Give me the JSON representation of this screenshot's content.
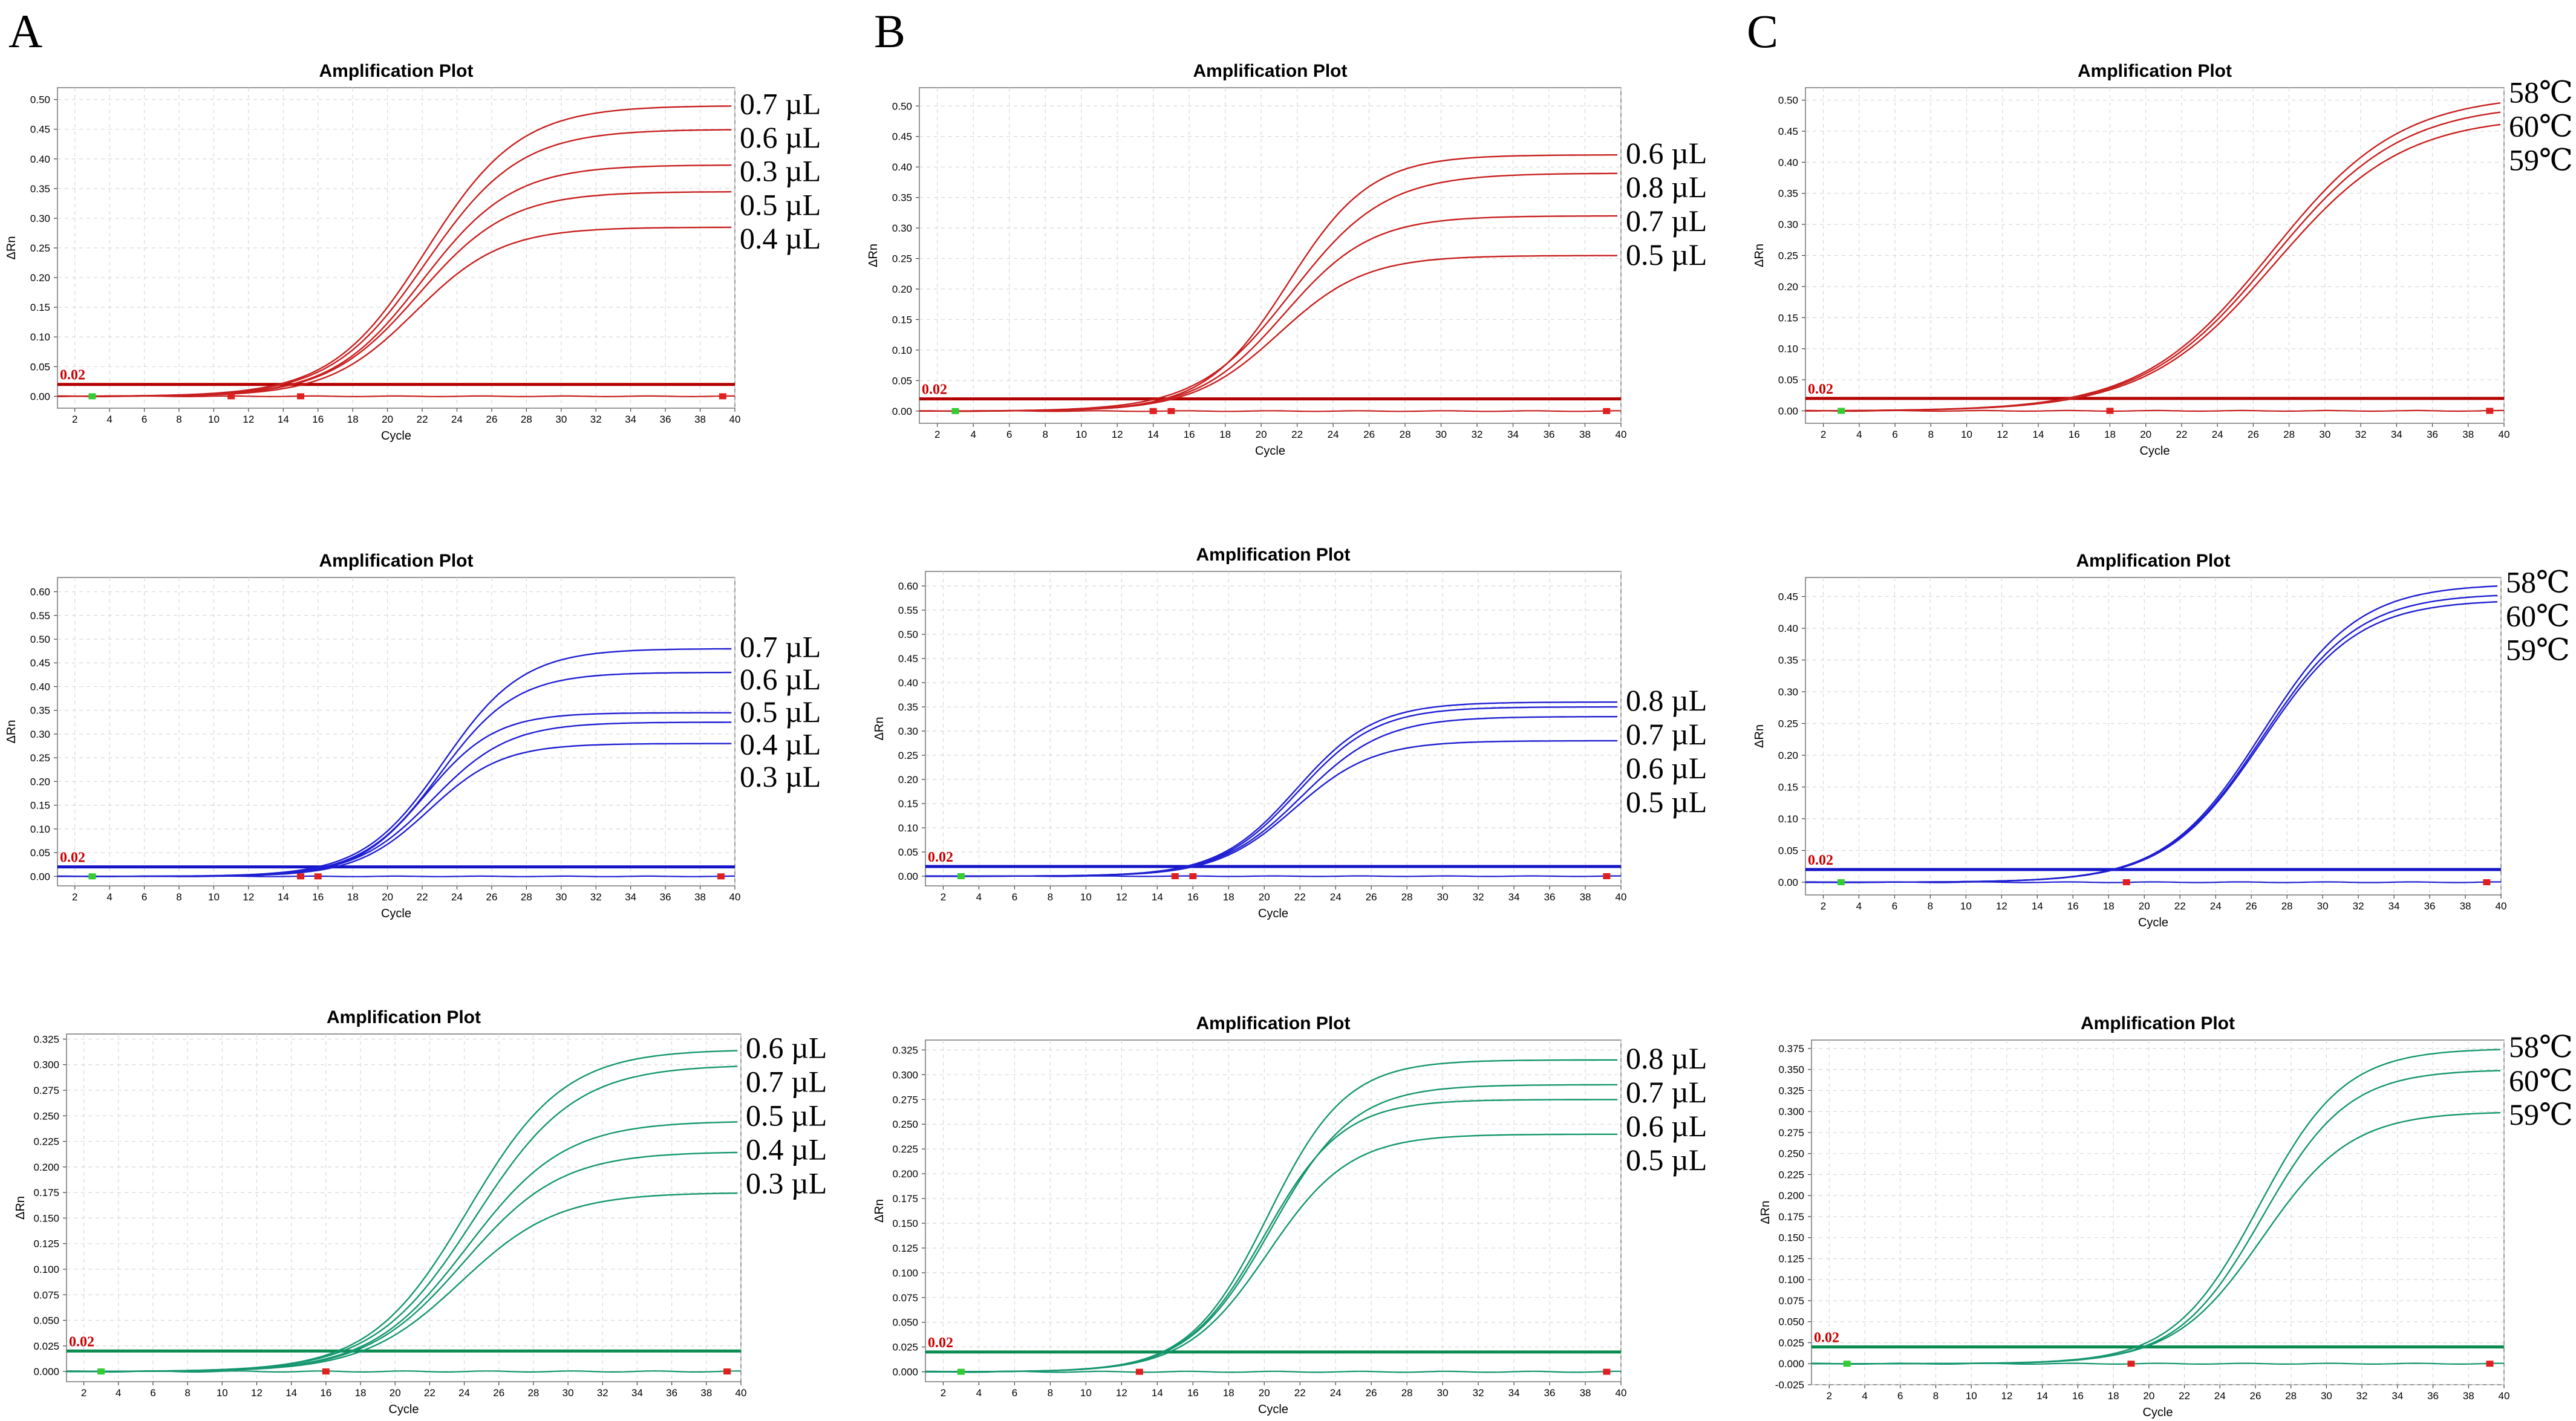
{
  "figure": {
    "panel_letters": [
      "A",
      "B",
      "C"
    ]
  },
  "colors": {
    "red": "#c81e1e",
    "blue": "#1e1ed2",
    "green": "#14966e",
    "threshold_red": "#b40000",
    "threshold_blue": "#1414c8",
    "threshold_green": "#0a8c50",
    "threshold_text": "#cc0000",
    "grid": "#d9d9d9",
    "marker_start": "#33cc33",
    "marker_end": "#e02020"
  },
  "chart_data": [
    {
      "panel": "A",
      "row": 1,
      "type": "line",
      "color": "red",
      "title": "Amplification Plot",
      "xlabel": "Cycle",
      "ylabel": "ΔRn",
      "xlim": [
        1,
        40
      ],
      "ylim": [
        -0.02,
        0.52
      ],
      "xticks": [
        2,
        4,
        6,
        8,
        10,
        12,
        14,
        16,
        18,
        20,
        22,
        24,
        26,
        28,
        30,
        32,
        34,
        36,
        38,
        40
      ],
      "yticks": [
        "0.00",
        "0.05",
        "0.10",
        "0.15",
        "0.20",
        "0.25",
        "0.30",
        "0.35",
        "0.40",
        "0.45",
        "0.50"
      ],
      "threshold": 0.02,
      "threshold_label": "0.02",
      "start_marker": 3,
      "end_markers": [
        11,
        15,
        39.3
      ],
      "series": [
        {
          "name": "0.7 µL",
          "plateau": 0.49,
          "midpoint": 22.2,
          "slope": 2.7
        },
        {
          "name": "0.6 µL",
          "plateau": 0.45,
          "midpoint": 22.2,
          "slope": 2.7
        },
        {
          "name": "0.3 µL",
          "plateau": 0.39,
          "midpoint": 22.0,
          "slope": 2.6
        },
        {
          "name": "0.5 µL",
          "plateau": 0.345,
          "midpoint": 21.8,
          "slope": 2.6
        },
        {
          "name": "0.4 µL",
          "plateau": 0.285,
          "midpoint": 21.6,
          "slope": 2.5
        }
      ]
    },
    {
      "panel": "B",
      "row": 1,
      "type": "line",
      "color": "red",
      "title": "Amplification Plot",
      "xlabel": "Cycle",
      "ylabel": "ΔRn",
      "xlim": [
        1,
        40
      ],
      "ylim": [
        -0.02,
        0.53
      ],
      "xticks": [
        2,
        4,
        6,
        8,
        10,
        12,
        14,
        16,
        18,
        20,
        22,
        24,
        26,
        28,
        30,
        32,
        34,
        36,
        38,
        40
      ],
      "yticks": [
        "0.00",
        "0.05",
        "0.10",
        "0.15",
        "0.20",
        "0.25",
        "0.30",
        "0.35",
        "0.40",
        "0.45",
        "0.50"
      ],
      "threshold": 0.02,
      "threshold_label": "0.02",
      "start_marker": 3,
      "end_markers": [
        14,
        15,
        39.2
      ],
      "series": [
        {
          "name": "0.6 µL",
          "plateau": 0.42,
          "midpoint": 21.5,
          "slope": 2.3
        },
        {
          "name": "0.8 µL",
          "plateau": 0.39,
          "midpoint": 21.7,
          "slope": 2.6
        },
        {
          "name": "0.7 µL",
          "plateau": 0.32,
          "midpoint": 21.3,
          "slope": 2.4
        },
        {
          "name": "0.5 µL",
          "plateau": 0.255,
          "midpoint": 21.0,
          "slope": 2.4
        }
      ]
    },
    {
      "panel": "C",
      "row": 1,
      "type": "line",
      "color": "red",
      "title": "Amplification Plot",
      "xlabel": "Cycle",
      "ylabel": "ΔRn",
      "xlim": [
        1,
        40
      ],
      "ylim": [
        -0.02,
        0.52
      ],
      "xticks": [
        2,
        4,
        6,
        8,
        10,
        12,
        14,
        16,
        18,
        20,
        22,
        24,
        26,
        28,
        30,
        32,
        34,
        36,
        38,
        40
      ],
      "yticks": [
        "0.00",
        "0.05",
        "0.10",
        "0.15",
        "0.20",
        "0.25",
        "0.30",
        "0.35",
        "0.40",
        "0.45",
        "0.50"
      ],
      "threshold": 0.02,
      "threshold_label": "0.02",
      "start_marker": 3,
      "end_markers": [
        18,
        39.2
      ],
      "series": [
        {
          "name": "58℃",
          "plateau": 0.51,
          "midpoint": 27.0,
          "slope": 3.6
        },
        {
          "name": "60℃",
          "plateau": 0.495,
          "midpoint": 27.1,
          "slope": 3.6
        },
        {
          "name": "59℃",
          "plateau": 0.475,
          "midpoint": 27.2,
          "slope": 3.6
        }
      ]
    },
    {
      "panel": "A",
      "row": 2,
      "type": "line",
      "color": "blue",
      "title": "Amplification Plot",
      "xlabel": "Cycle",
      "ylabel": "ΔRn",
      "xlim": [
        1,
        40
      ],
      "ylim": [
        -0.02,
        0.63
      ],
      "xticks": [
        2,
        4,
        6,
        8,
        10,
        12,
        14,
        16,
        18,
        20,
        22,
        24,
        26,
        28,
        30,
        32,
        34,
        36,
        38,
        40
      ],
      "yticks": [
        "0.00",
        "0.05",
        "0.10",
        "0.15",
        "0.20",
        "0.25",
        "0.30",
        "0.35",
        "0.40",
        "0.45",
        "0.50",
        "0.55",
        "0.60"
      ],
      "threshold": 0.02,
      "threshold_label": "0.02",
      "start_marker": 3,
      "end_markers": [
        15,
        16,
        39.2
      ],
      "series": [
        {
          "name": "0.7 µL",
          "plateau": 0.48,
          "midpoint": 23.2,
          "slope": 2.3
        },
        {
          "name": "0.6 µL",
          "plateau": 0.43,
          "midpoint": 23.0,
          "slope": 2.2
        },
        {
          "name": "0.5 µL",
          "plateau": 0.345,
          "midpoint": 22.2,
          "slope": 2.0
        },
        {
          "name": "0.4 µL",
          "plateau": 0.325,
          "midpoint": 22.6,
          "slope": 2.2
        },
        {
          "name": "0.3 µL",
          "plateau": 0.28,
          "midpoint": 22.4,
          "slope": 2.1
        }
      ]
    },
    {
      "panel": "B",
      "row": 2,
      "type": "line",
      "color": "blue",
      "title": "Amplification Plot",
      "xlabel": "Cycle",
      "ylabel": "ΔRn",
      "xlim": [
        1,
        40
      ],
      "ylim": [
        -0.02,
        0.63
      ],
      "xticks": [
        2,
        4,
        6,
        8,
        10,
        12,
        14,
        16,
        18,
        20,
        22,
        24,
        26,
        28,
        30,
        32,
        34,
        36,
        38,
        40
      ],
      "yticks": [
        "0.00",
        "0.05",
        "0.10",
        "0.15",
        "0.20",
        "0.25",
        "0.30",
        "0.35",
        "0.40",
        "0.45",
        "0.50",
        "0.55",
        "0.60"
      ],
      "threshold": 0.02,
      "threshold_label": "0.02",
      "start_marker": 3,
      "end_markers": [
        15,
        16,
        39.2
      ],
      "series": [
        {
          "name": "0.8 µL",
          "plateau": 0.36,
          "midpoint": 21.8,
          "slope": 2.2
        },
        {
          "name": "0.7 µL",
          "plateau": 0.35,
          "midpoint": 21.9,
          "slope": 2.2
        },
        {
          "name": "0.6 µL",
          "plateau": 0.33,
          "midpoint": 22.1,
          "slope": 2.3
        },
        {
          "name": "0.5 µL",
          "plateau": 0.28,
          "midpoint": 21.7,
          "slope": 2.2
        }
      ]
    },
    {
      "panel": "C",
      "row": 2,
      "type": "line",
      "color": "blue",
      "title": "Amplification Plot",
      "xlabel": "Cycle",
      "ylabel": "ΔRn",
      "xlim": [
        1,
        40
      ],
      "ylim": [
        -0.02,
        0.48
      ],
      "xticks": [
        2,
        4,
        6,
        8,
        10,
        12,
        14,
        16,
        18,
        20,
        22,
        24,
        26,
        28,
        30,
        32,
        34,
        36,
        38,
        40
      ],
      "yticks": [
        "0.00",
        "0.05",
        "0.10",
        "0.15",
        "0.20",
        "0.25",
        "0.30",
        "0.35",
        "0.40",
        "0.45"
      ],
      "threshold": 0.02,
      "threshold_label": "0.02",
      "start_marker": 3,
      "end_markers": [
        19,
        39.2
      ],
      "series": [
        {
          "name": "58℃",
          "plateau": 0.47,
          "midpoint": 26.6,
          "slope": 2.7
        },
        {
          "name": "60℃",
          "plateau": 0.455,
          "midpoint": 26.6,
          "slope": 2.7
        },
        {
          "name": "59℃",
          "plateau": 0.445,
          "midpoint": 26.6,
          "slope": 2.7
        }
      ]
    },
    {
      "panel": "A",
      "row": 3,
      "type": "line",
      "color": "green",
      "title": "Amplification Plot",
      "xlabel": "Cycle",
      "ylabel": "ΔRn",
      "xlim": [
        1,
        40
      ],
      "ylim": [
        -0.01,
        0.33
      ],
      "xticks": [
        2,
        4,
        6,
        8,
        10,
        12,
        14,
        16,
        18,
        20,
        22,
        24,
        26,
        28,
        30,
        32,
        34,
        36,
        38,
        40
      ],
      "yticks": [
        "0.000",
        "0.025",
        "0.050",
        "0.075",
        "0.100",
        "0.125",
        "0.150",
        "0.175",
        "0.200",
        "0.225",
        "0.250",
        "0.275",
        "0.300",
        "0.325"
      ],
      "threshold": 0.02,
      "threshold_label": "0.02",
      "start_marker": 3,
      "end_markers": [
        16,
        39.2
      ],
      "series": [
        {
          "name": "0.6 µL",
          "plateau": 0.315,
          "midpoint": 24.2,
          "slope": 2.8
        },
        {
          "name": "0.7 µL",
          "plateau": 0.3,
          "midpoint": 24.6,
          "slope": 2.9
        },
        {
          "name": "0.5 µL",
          "plateau": 0.245,
          "midpoint": 24.2,
          "slope": 2.8
        },
        {
          "name": "0.4 µL",
          "plateau": 0.215,
          "midpoint": 24.0,
          "slope": 2.8
        },
        {
          "name": "0.3 µL",
          "plateau": 0.175,
          "midpoint": 23.8,
          "slope": 2.8
        }
      ]
    },
    {
      "panel": "B",
      "row": 3,
      "type": "line",
      "color": "green",
      "title": "Amplification Plot",
      "xlabel": "Cycle",
      "ylabel": "ΔRn",
      "xlim": [
        1,
        40
      ],
      "ylim": [
        -0.01,
        0.335
      ],
      "xticks": [
        2,
        4,
        6,
        8,
        10,
        12,
        14,
        16,
        18,
        20,
        22,
        24,
        26,
        28,
        30,
        32,
        34,
        36,
        38,
        40
      ],
      "yticks": [
        "0.000",
        "0.025",
        "0.050",
        "0.075",
        "0.100",
        "0.125",
        "0.150",
        "0.175",
        "0.200",
        "0.225",
        "0.250",
        "0.275",
        "0.300",
        "0.325"
      ],
      "threshold": 0.02,
      "threshold_label": "0.02",
      "start_marker": 3,
      "end_markers": [
        13,
        39.2
      ],
      "series": [
        {
          "name": "0.8 µL",
          "plateau": 0.315,
          "midpoint": 20.2,
          "slope": 2.2
        },
        {
          "name": "0.7 µL",
          "plateau": 0.29,
          "midpoint": 20.4,
          "slope": 2.3
        },
        {
          "name": "0.6 µL",
          "plateau": 0.275,
          "midpoint": 20.0,
          "slope": 2.2
        },
        {
          "name": "0.5 µL",
          "plateau": 0.24,
          "midpoint": 20.2,
          "slope": 2.3
        }
      ]
    },
    {
      "panel": "C",
      "row": 3,
      "type": "line",
      "color": "green",
      "title": "Amplification Plot",
      "xlabel": "Cycle",
      "ylabel": "ΔRn",
      "xlim": [
        1,
        40
      ],
      "ylim": [
        -0.025,
        0.385
      ],
      "xticks": [
        2,
        4,
        6,
        8,
        10,
        12,
        14,
        16,
        18,
        20,
        22,
        24,
        26,
        28,
        30,
        32,
        34,
        36,
        38,
        40
      ],
      "yticks": [
        "-0.025",
        "0.000",
        "0.025",
        "0.050",
        "0.075",
        "0.100",
        "0.125",
        "0.150",
        "0.175",
        "0.200",
        "0.225",
        "0.250",
        "0.275",
        "0.300",
        "0.325",
        "0.350",
        "0.375"
      ],
      "threshold": 0.02,
      "threshold_label": "0.02",
      "start_marker": 3,
      "end_markers": [
        19,
        39.2
      ],
      "series": [
        {
          "name": "58℃",
          "plateau": 0.375,
          "midpoint": 26.2,
          "slope": 2.4
        },
        {
          "name": "60℃",
          "plateau": 0.35,
          "midpoint": 26.4,
          "slope": 2.4
        },
        {
          "name": "59℃",
          "plateau": 0.3,
          "midpoint": 26.4,
          "slope": 2.5
        }
      ]
    }
  ]
}
